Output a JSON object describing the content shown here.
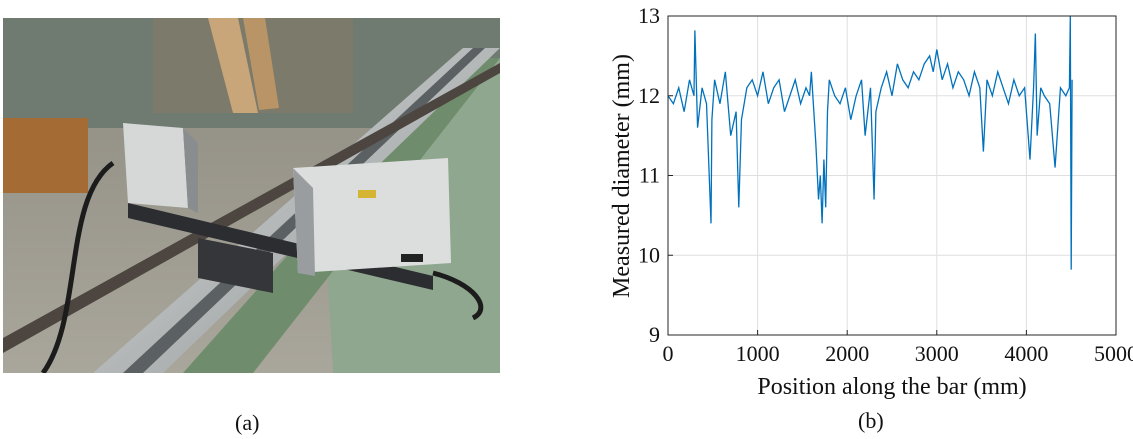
{
  "panels": {
    "a_label": "(a)",
    "b_label": "(b)"
  },
  "photo": {
    "subject": "laser-scanner-on-rail-photo"
  },
  "chart_data": {
    "type": "line",
    "title": "",
    "xlabel": "Position along the bar (mm)",
    "ylabel": "Measured diameter (mm)",
    "xlim": [
      0,
      5000
    ],
    "ylim": [
      9,
      13
    ],
    "xticks": [
      0,
      1000,
      2000,
      3000,
      4000,
      5000
    ],
    "yticks": [
      9,
      10,
      11,
      12,
      13
    ],
    "grid": true,
    "line_color": "#0072BD",
    "series": [
      {
        "x": [
          0,
          60,
          120,
          180,
          240,
          290,
          300,
          330,
          380,
          430,
          480,
          490,
          520,
          580,
          640,
          700,
          760,
          790,
          820,
          880,
          940,
          1000,
          1060,
          1120,
          1180,
          1240,
          1300,
          1360,
          1420,
          1480,
          1540,
          1580,
          1600,
          1650,
          1680,
          1700,
          1720,
          1740,
          1760,
          1780,
          1800,
          1860,
          1920,
          1980,
          2040,
          2100,
          2160,
          2200,
          2260,
          2300,
          2320,
          2380,
          2440,
          2500,
          2560,
          2620,
          2680,
          2740,
          2800,
          2860,
          2920,
          2960,
          3000,
          3060,
          3120,
          3180,
          3240,
          3300,
          3360,
          3420,
          3480,
          3520,
          3560,
          3620,
          3680,
          3740,
          3800,
          3860,
          3920,
          3980,
          4040,
          4080,
          4100,
          4120,
          4160,
          4200,
          4260,
          4320,
          4380,
          4440,
          4480,
          4490,
          4500,
          4510
        ],
        "y": [
          12.0,
          11.9,
          12.1,
          11.8,
          12.2,
          12.0,
          12.82,
          11.6,
          12.1,
          11.9,
          10.4,
          11.7,
          12.2,
          11.9,
          12.3,
          11.5,
          11.8,
          10.6,
          11.7,
          12.1,
          12.2,
          12.0,
          12.3,
          11.9,
          12.1,
          12.2,
          11.8,
          12.0,
          12.2,
          11.9,
          12.1,
          12.0,
          12.3,
          11.4,
          10.7,
          11.0,
          10.4,
          11.2,
          10.6,
          11.8,
          12.2,
          12.0,
          11.9,
          12.1,
          11.7,
          12.0,
          12.2,
          11.5,
          12.1,
          10.7,
          11.8,
          12.1,
          12.3,
          12.0,
          12.4,
          12.2,
          12.1,
          12.3,
          12.2,
          12.4,
          12.5,
          12.3,
          12.58,
          12.2,
          12.4,
          12.1,
          12.3,
          12.2,
          12.0,
          12.3,
          12.1,
          11.3,
          12.2,
          12.0,
          12.3,
          12.1,
          11.9,
          12.2,
          12.0,
          12.1,
          11.2,
          12.1,
          12.78,
          11.5,
          12.1,
          12.0,
          11.9,
          11.1,
          12.1,
          12.0,
          12.1,
          13.0,
          9.82,
          12.2
        ]
      }
    ]
  }
}
